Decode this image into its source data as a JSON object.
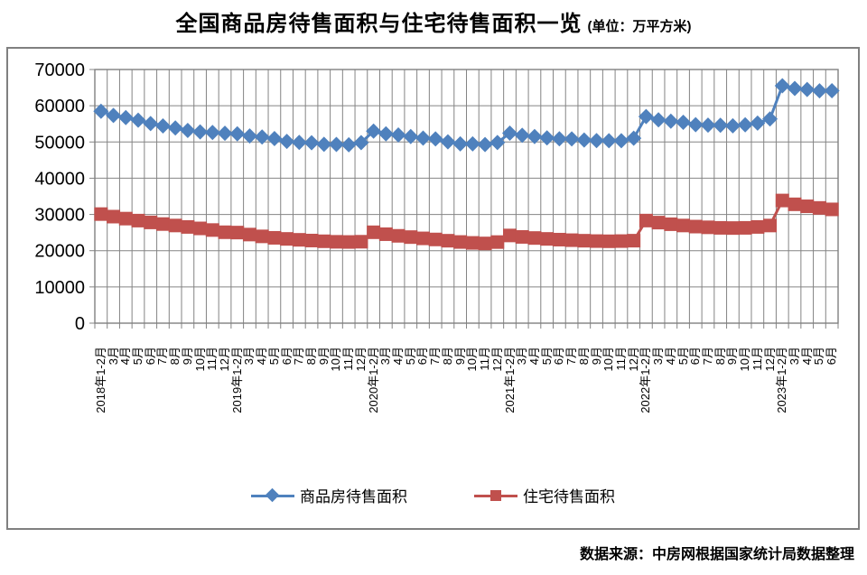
{
  "title": {
    "text": "全国商品房待售面积与住宅待售面积一览",
    "unit": "(单位：万平方米)"
  },
  "footer": {
    "source": "数据来源：中房网根据国家统计局数据整理"
  },
  "colors": {
    "series_commercial": "#4F81BD",
    "series_residential": "#C0504D",
    "gridline": "#848484",
    "frame_border": "#808080"
  },
  "chart_data": {
    "type": "line",
    "title": "全国商品房待售面积与住宅待售面积一览",
    "unit_label": "(单位：万平方米)",
    "grid": true,
    "legend_position": "bottom",
    "ylim": [
      0,
      70000
    ],
    "yticks": [
      0,
      10000,
      20000,
      30000,
      40000,
      50000,
      60000,
      70000
    ],
    "categories": [
      "2018年1-2月",
      "3月",
      "4月",
      "5月",
      "6月",
      "7月",
      "8月",
      "9月",
      "10月",
      "11月",
      "12月",
      "2019年1-2月",
      "3月",
      "4月",
      "5月",
      "6月",
      "7月",
      "8月",
      "9月",
      "10月",
      "11月",
      "12月",
      "2020年1-2月",
      "3月",
      "4月",
      "5月",
      "6月",
      "7月",
      "8月",
      "9月",
      "10月",
      "11月",
      "12月",
      "2021年1-2月",
      "3月",
      "4月",
      "5月",
      "6月",
      "7月",
      "8月",
      "9月",
      "10月",
      "11月",
      "12月",
      "2022年1-2月",
      "3月",
      "4月",
      "5月",
      "6月",
      "7月",
      "8月",
      "9月",
      "10月",
      "11月",
      "12月",
      "2023年1-2月",
      "3月",
      "4月",
      "5月",
      "6月"
    ],
    "series": [
      {
        "name": "商品房待售面积",
        "color": "#4F81BD",
        "marker": "diamond",
        "values": [
          58468,
          57329,
          56726,
          56010,
          55083,
          54428,
          53873,
          53191,
          52789,
          52627,
          52414,
          52251,
          51646,
          51380,
          50928,
          50162,
          49876,
          49784,
          49346,
          49323,
          49221,
          49821,
          52998,
          52255,
          51936,
          51509,
          51083,
          50864,
          50052,
          49474,
          49492,
          49287,
          49850,
          52425,
          51835,
          51512,
          51115,
          50867,
          50864,
          50539,
          50385,
          50347,
          50344,
          51023,
          57026,
          56113,
          55735,
          55433,
          54784,
          54655,
          54605,
          54467,
          54734,
          55203,
          56366,
          65528,
          64770,
          64487,
          64120,
          64159
        ]
      },
      {
        "name": "住宅待售面积",
        "color": "#C0504D",
        "marker": "square",
        "values": [
          30100,
          29400,
          28850,
          28300,
          27800,
          27350,
          26950,
          26550,
          26150,
          25700,
          25091,
          25000,
          24450,
          23950,
          23550,
          23250,
          23000,
          22800,
          22600,
          22450,
          22400,
          22473,
          25083,
          24550,
          24100,
          23750,
          23400,
          23100,
          22750,
          22400,
          22150,
          22000,
          22379,
          24200,
          23800,
          23500,
          23250,
          23050,
          22900,
          22750,
          22650,
          22600,
          22650,
          22761,
          28313,
          27750,
          27300,
          26950,
          26650,
          26450,
          26300,
          26250,
          26300,
          26550,
          26947,
          33852,
          32800,
          32250,
          31800,
          31400
        ]
      }
    ]
  }
}
